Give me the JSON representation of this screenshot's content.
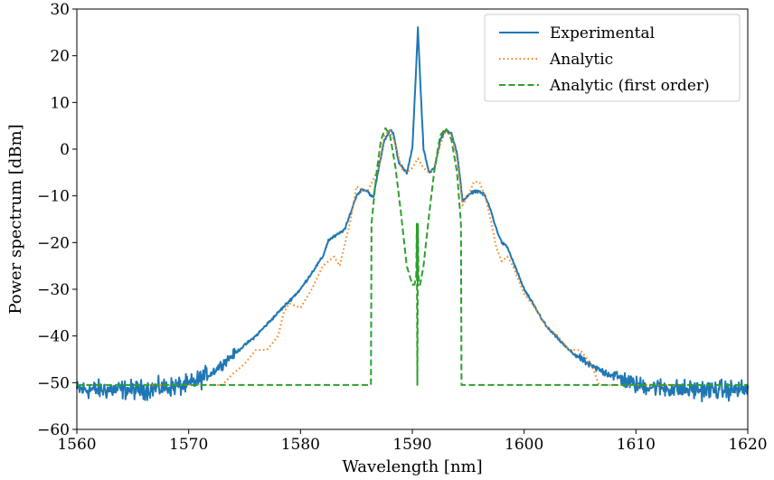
{
  "chart_data": {
    "type": "line",
    "xlabel": "Wavelength [nm]",
    "ylabel": "Power spectrum [dBm]",
    "xlim": [
      1560,
      1620
    ],
    "ylim": [
      -60,
      30
    ],
    "xticks": [
      "1560",
      "1570",
      "1580",
      "1590",
      "1600",
      "1610",
      "1620"
    ],
    "yticks": [
      "30",
      "20",
      "10",
      "0",
      "−10",
      "−20",
      "−30",
      "−40",
      "−50",
      "−60"
    ],
    "grid": false,
    "legend_position": "top-right",
    "series": [
      {
        "name": "Experimental",
        "color": "#1f77b4",
        "style": "solid",
        "noise_floor": -51.5,
        "x": [
          1560,
          1566,
          1570,
          1572,
          1574,
          1576,
          1578,
          1580,
          1581,
          1582,
          1582.5,
          1583.5,
          1584,
          1585,
          1585.5,
          1586,
          1586.5,
          1587,
          1587.5,
          1588,
          1588.3,
          1588.8,
          1589.5,
          1590,
          1590.3,
          1590.5,
          1590.7,
          1591,
          1591.5,
          1592,
          1592.5,
          1593,
          1593.5,
          1594,
          1594.5,
          1595,
          1595.5,
          1596,
          1596.5,
          1597,
          1597.5,
          1598,
          1598.5,
          1599,
          1600,
          1601,
          1602,
          1604,
          1606,
          1608,
          1610,
          1612,
          1614,
          1620
        ],
        "y": [
          -51.5,
          -51.5,
          -50.5,
          -48,
          -44,
          -40,
          -35,
          -30,
          -26.5,
          -23,
          -19.5,
          -18,
          -17,
          -10,
          -8.5,
          -9,
          -10.5,
          -4,
          2,
          4,
          3.5,
          -3,
          -5,
          0,
          15,
          26,
          15,
          0,
          -5,
          -4,
          2,
          4,
          3.5,
          -1,
          -11,
          -10,
          -9,
          -9,
          -10,
          -13,
          -17,
          -20,
          -21,
          -24,
          -30,
          -34,
          -38,
          -43,
          -46.5,
          -48.5,
          -50.5,
          -51,
          -51.5,
          -51.5
        ]
      },
      {
        "name": "Analytic",
        "color": "#ff7f0e",
        "style": "dotted",
        "x": [
          1566,
          1573,
          1574,
          1575,
          1576,
          1577,
          1578,
          1578.5,
          1579,
          1580,
          1581,
          1582,
          1583,
          1583.5,
          1584,
          1584.5,
          1585,
          1586,
          1587,
          1587.5,
          1588,
          1588.5,
          1589,
          1589.5,
          1590,
          1590.5,
          1591,
          1591.5,
          1592,
          1592.5,
          1593,
          1593.5,
          1594,
          1594.5,
          1595,
          1595.5,
          1596,
          1596.5,
          1597,
          1597.5,
          1598,
          1598.5,
          1599,
          1600,
          1601,
          1602,
          1603,
          1604,
          1605,
          1606,
          1606.7,
          1607,
          1614
        ],
        "y": [
          -50.5,
          -50.5,
          -48,
          -46,
          -43,
          -43,
          -40,
          -35,
          -33,
          -34,
          -30,
          -25,
          -23,
          -25,
          -20,
          -15,
          -8,
          -9,
          -4,
          3,
          4,
          1,
          -4,
          -5,
          -4,
          -2,
          -4,
          -5,
          -4,
          1,
          4,
          3,
          -2,
          -12,
          -10,
          -7,
          -7,
          -10,
          -15,
          -21,
          -24,
          -23,
          -25,
          -31,
          -34,
          -38,
          -40,
          -43,
          -43,
          -46,
          -50.5,
          -50.5,
          -50.5
        ]
      },
      {
        "name": "Analytic (first order)",
        "color": "#2ca02c",
        "style": "dashed",
        "x": [
          1560,
          1586.3,
          1586.35,
          1586.8,
          1587.2,
          1587.6,
          1588,
          1588.5,
          1589,
          1589.5,
          1590,
          1590.2,
          1590.35,
          1590.4,
          1590.45,
          1590.5,
          1590.55,
          1590.6,
          1590.7,
          1591,
          1591.5,
          1592,
          1592.5,
          1593,
          1593.5,
          1594,
          1594.35,
          1594.4,
          1620
        ],
        "y": [
          -50.5,
          -50.5,
          -16,
          -5,
          2,
          4.5,
          3,
          -4,
          -14,
          -25,
          -29,
          -29,
          -27,
          -16,
          -50.5,
          -16,
          -27,
          -29,
          -29,
          -25,
          -14,
          -4,
          3,
          4.5,
          2,
          -5,
          -16,
          -50.5,
          -50.5
        ]
      }
    ]
  }
}
